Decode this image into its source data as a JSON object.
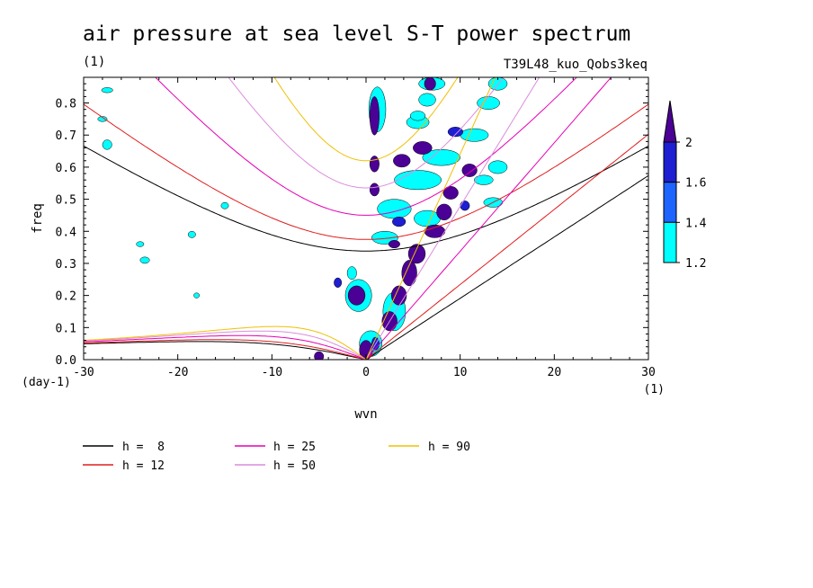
{
  "chart_data": {
    "type": "heatmap",
    "title": "air pressure at sea level S-T power spectrum",
    "subtitle_left": "(1)",
    "subtitle_right": "T39L48_kuo_Qobs3keq",
    "xlabel": "wvn",
    "ylabel": "freq",
    "x_unit_label": "(1)",
    "y_unit_label": "(day-1)",
    "xlim": [
      -30,
      30
    ],
    "ylim": [
      0,
      0.88
    ],
    "x_ticks": [
      "-30",
      "-20",
      "-10",
      "0",
      "10",
      "20",
      "30"
    ],
    "y_ticks": [
      "0.0",
      "0.1",
      "0.2",
      "0.3",
      "0.4",
      "0.5",
      "0.6",
      "0.7",
      "0.8"
    ],
    "colorbar": {
      "levels": [
        "1.2",
        "1.4",
        "1.6",
        "2"
      ],
      "colors": [
        "#00ffff",
        "#1e64ff",
        "#1e1ed2",
        "#4b0096"
      ]
    },
    "dispersion_curves": [
      {
        "label": "h =  8",
        "h": 8,
        "color": "#000000"
      },
      {
        "label": "h = 12",
        "h": 12,
        "color": "#e11e1e"
      },
      {
        "label": "h = 25",
        "h": 25,
        "color": "#e600b4"
      },
      {
        "label": "h = 50",
        "h": 50,
        "color": "#dc8cdc"
      },
      {
        "label": "h = 90",
        "h": 90,
        "color": "#f0c000"
      }
    ],
    "power_blobs": [
      {
        "x": 0.9,
        "y": 0.76,
        "rx": 0.5,
        "ry": 0.06,
        "level": 3
      },
      {
        "x": 0.9,
        "y": 0.61,
        "rx": 0.5,
        "ry": 0.025,
        "level": 3
      },
      {
        "x": 0.9,
        "y": 0.53,
        "rx": 0.5,
        "ry": 0.02,
        "level": 3
      },
      {
        "x": -1.0,
        "y": 0.2,
        "rx": 0.9,
        "ry": 0.03,
        "level": 3
      },
      {
        "x": 0.0,
        "y": 0.03,
        "rx": 0.7,
        "ry": 0.03,
        "level": 3
      },
      {
        "x": 2.5,
        "y": 0.12,
        "rx": 0.8,
        "ry": 0.03,
        "level": 3
      },
      {
        "x": 3.5,
        "y": 0.2,
        "rx": 0.8,
        "ry": 0.03,
        "level": 3
      },
      {
        "x": 4.6,
        "y": 0.27,
        "rx": 0.8,
        "ry": 0.04,
        "level": 3
      },
      {
        "x": 5.4,
        "y": 0.33,
        "rx": 0.9,
        "ry": 0.03,
        "level": 3
      },
      {
        "x": 7.3,
        "y": 0.4,
        "rx": 1.1,
        "ry": 0.02,
        "level": 3
      },
      {
        "x": 8.3,
        "y": 0.46,
        "rx": 0.8,
        "ry": 0.025,
        "level": 3
      },
      {
        "x": 9.0,
        "y": 0.52,
        "rx": 0.8,
        "ry": 0.02,
        "level": 3
      },
      {
        "x": 11.0,
        "y": 0.59,
        "rx": 0.8,
        "ry": 0.02,
        "level": 3
      },
      {
        "x": 3.8,
        "y": 0.62,
        "rx": 0.9,
        "ry": 0.02,
        "level": 3
      },
      {
        "x": 6.0,
        "y": 0.66,
        "rx": 1.0,
        "ry": 0.02,
        "level": 3
      },
      {
        "x": 6.8,
        "y": 0.86,
        "rx": 0.6,
        "ry": 0.02,
        "level": 3
      },
      {
        "x": 3.0,
        "y": 0.36,
        "rx": 0.6,
        "ry": 0.012,
        "level": 3
      },
      {
        "x": -5.0,
        "y": 0.01,
        "rx": 0.5,
        "ry": 0.015,
        "level": 3
      },
      {
        "x": -3.0,
        "y": 0.24,
        "rx": 0.4,
        "ry": 0.015,
        "level": 2
      },
      {
        "x": 3.5,
        "y": 0.43,
        "rx": 0.7,
        "ry": 0.015,
        "level": 2
      },
      {
        "x": 10.5,
        "y": 0.48,
        "rx": 0.5,
        "ry": 0.015,
        "level": 2
      },
      {
        "x": 9.5,
        "y": 0.71,
        "rx": 0.8,
        "ry": 0.015,
        "level": 2
      },
      {
        "x": 1.0,
        "y": 0.05,
        "rx": 0.4,
        "ry": 0.02,
        "level": 2
      },
      {
        "x": 1.2,
        "y": 0.78,
        "rx": 0.9,
        "ry": 0.07,
        "level": 0
      },
      {
        "x": 5.5,
        "y": 0.56,
        "rx": 2.5,
        "ry": 0.03,
        "level": 0
      },
      {
        "x": 8.0,
        "y": 0.63,
        "rx": 2.0,
        "ry": 0.025,
        "level": 0
      },
      {
        "x": 11.5,
        "y": 0.7,
        "rx": 1.5,
        "ry": 0.02,
        "level": 0
      },
      {
        "x": 13.0,
        "y": 0.8,
        "rx": 1.2,
        "ry": 0.02,
        "level": 0
      },
      {
        "x": 7.0,
        "y": 0.86,
        "rx": 1.4,
        "ry": 0.02,
        "level": 0
      },
      {
        "x": 3.0,
        "y": 0.47,
        "rx": 1.8,
        "ry": 0.03,
        "level": 0
      },
      {
        "x": 6.5,
        "y": 0.44,
        "rx": 1.4,
        "ry": 0.025,
        "level": 0
      },
      {
        "x": 2.0,
        "y": 0.38,
        "rx": 1.4,
        "ry": 0.02,
        "level": 0
      },
      {
        "x": -0.8,
        "y": 0.2,
        "rx": 1.4,
        "ry": 0.05,
        "level": 0
      },
      {
        "x": 3.0,
        "y": 0.15,
        "rx": 1.2,
        "ry": 0.06,
        "level": 0
      },
      {
        "x": 0.5,
        "y": 0.05,
        "rx": 1.2,
        "ry": 0.04,
        "level": 0
      },
      {
        "x": -1.5,
        "y": 0.27,
        "rx": 0.5,
        "ry": 0.02,
        "level": 0
      },
      {
        "x": 5.5,
        "y": 0.74,
        "rx": 1.2,
        "ry": 0.02,
        "level": 0
      },
      {
        "x": -27.5,
        "y": 0.84,
        "rx": 0.6,
        "ry": 0.008,
        "level": 0
      },
      {
        "x": -27.5,
        "y": 0.67,
        "rx": 0.5,
        "ry": 0.015,
        "level": 0
      },
      {
        "x": -28.0,
        "y": 0.75,
        "rx": 0.5,
        "ry": 0.008,
        "level": 0
      },
      {
        "x": -24.0,
        "y": 0.36,
        "rx": 0.4,
        "ry": 0.008,
        "level": 0
      },
      {
        "x": -23.5,
        "y": 0.31,
        "rx": 0.5,
        "ry": 0.01,
        "level": 0
      },
      {
        "x": -18.5,
        "y": 0.39,
        "rx": 0.4,
        "ry": 0.01,
        "level": 0
      },
      {
        "x": -15.0,
        "y": 0.48,
        "rx": 0.4,
        "ry": 0.01,
        "level": 0
      },
      {
        "x": -18.0,
        "y": 0.2,
        "rx": 0.3,
        "ry": 0.008,
        "level": 0
      },
      {
        "x": 5.5,
        "y": 0.76,
        "rx": 0.8,
        "ry": 0.015,
        "level": 0
      },
      {
        "x": 13.5,
        "y": 0.49,
        "rx": 1.0,
        "ry": 0.015,
        "level": 0
      },
      {
        "x": 12.5,
        "y": 0.56,
        "rx": 1.0,
        "ry": 0.015,
        "level": 0
      },
      {
        "x": 14.0,
        "y": 0.6,
        "rx": 1.0,
        "ry": 0.02,
        "level": 0
      },
      {
        "x": 14.0,
        "y": 0.86,
        "rx": 1.0,
        "ry": 0.02,
        "level": 0
      },
      {
        "x": 6.5,
        "y": 0.81,
        "rx": 0.9,
        "ry": 0.02,
        "level": 0
      }
    ]
  }
}
